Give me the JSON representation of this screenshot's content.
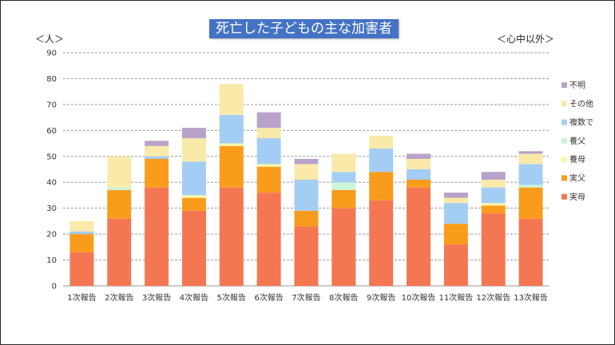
{
  "colors": {
    "frame": "#2a2a2a",
    "title_bg": "#4472c4",
    "title_text": "#ffffff",
    "grid": "#999999"
  },
  "chart_data": {
    "type": "bar",
    "stacked": true,
    "title": "死亡した子どもの主な加害者",
    "ylabel": "＜人＞",
    "note": "＜心中以外＞",
    "xlabel": "",
    "ylim": [
      0,
      90
    ],
    "yticks": [
      0,
      10,
      20,
      30,
      40,
      50,
      60,
      70,
      80,
      90
    ],
    "grid": "horizontal dashed",
    "legend_position": "right",
    "categories": [
      "1次報告",
      "2次報告",
      "3次報告",
      "4次報告",
      "5次報告",
      "6次報告",
      "7次報告",
      "8次報告",
      "9次報告",
      "10次報告",
      "11次報告",
      "12次報告",
      "13次報告"
    ],
    "series": [
      {
        "name": "実母",
        "color": "#f47752",
        "values": [
          13,
          26,
          38,
          29,
          38,
          36,
          23,
          30,
          33,
          38,
          16,
          28,
          26
        ]
      },
      {
        "name": "実父",
        "color": "#f99c1c",
        "values": [
          7,
          11,
          11,
          5,
          16,
          10,
          6,
          7,
          11,
          3,
          8,
          3,
          12
        ]
      },
      {
        "name": "養母",
        "color": "#fdf6a8",
        "values": [
          0,
          0,
          0,
          1,
          1,
          1,
          0,
          0,
          0,
          0,
          0,
          1,
          0
        ]
      },
      {
        "name": "養父",
        "color": "#c9f5d8",
        "values": [
          0,
          1,
          0,
          0,
          0,
          0,
          0,
          3,
          0,
          0,
          0,
          0,
          1
        ]
      },
      {
        "name": "複数で",
        "color": "#a4cdf4",
        "values": [
          1,
          0,
          1,
          13,
          11,
          10,
          12,
          4,
          9,
          4,
          8,
          6,
          8
        ]
      },
      {
        "name": "その他",
        "color": "#f9eaaa",
        "values": [
          4,
          12,
          4,
          9,
          12,
          4,
          6,
          7,
          5,
          4,
          2,
          3,
          4
        ]
      },
      {
        "name": "不明",
        "color": "#b7a3ca",
        "values": [
          0,
          0,
          2,
          4,
          0,
          6,
          2,
          0,
          0,
          2,
          2,
          3,
          1
        ]
      }
    ]
  }
}
